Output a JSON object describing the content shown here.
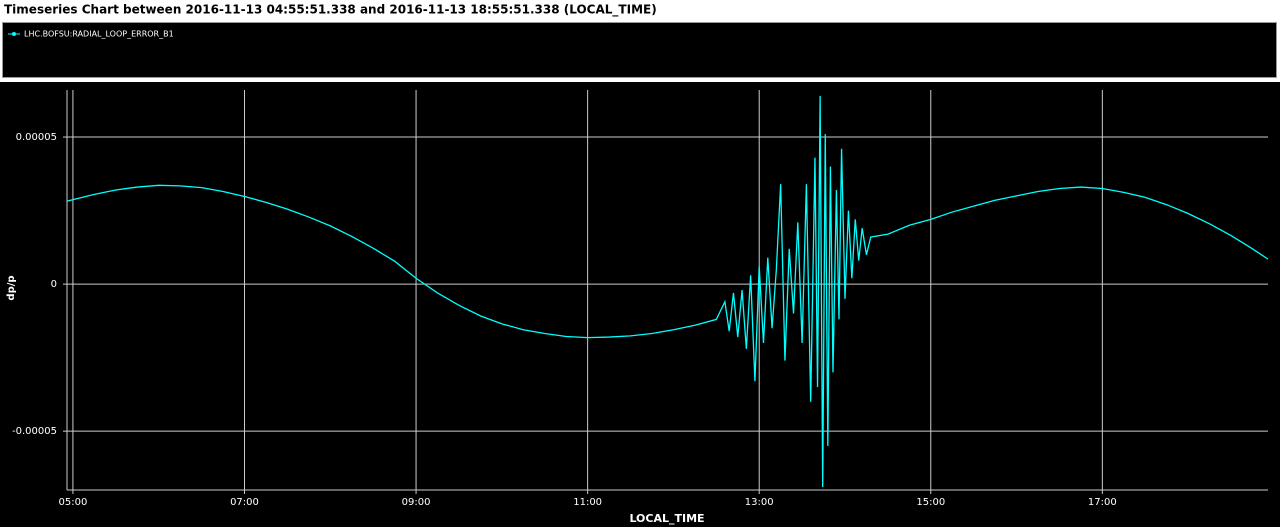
{
  "chart_data": {
    "type": "line",
    "title": "Timeseries Chart between 2016-11-13 04:55:51.338 and 2016-11-13 18:55:51.338 (LOCAL_TIME)",
    "x_label": "LOCAL_TIME",
    "y_label": "dp/p",
    "x": [
      4.931,
      5.25,
      5.5,
      5.75,
      6.0,
      6.25,
      6.5,
      6.75,
      7.0,
      7.25,
      7.5,
      7.75,
      8.0,
      8.25,
      8.5,
      8.75,
      9.0,
      9.25,
      9.5,
      9.75,
      10.0,
      10.25,
      10.5,
      10.75,
      11.0,
      11.25,
      11.5,
      11.75,
      12.0,
      12.25,
      12.5,
      12.6,
      12.65,
      12.7,
      12.75,
      12.8,
      12.85,
      12.9,
      12.95,
      13.0,
      13.05,
      13.1,
      13.15,
      13.2,
      13.25,
      13.3,
      13.35,
      13.4,
      13.45,
      13.5,
      13.55,
      13.6,
      13.65,
      13.68,
      13.71,
      13.74,
      13.77,
      13.8,
      13.83,
      13.86,
      13.9,
      13.93,
      13.96,
      14.0,
      14.04,
      14.08,
      14.12,
      14.16,
      14.2,
      14.25,
      14.3,
      14.5,
      14.75,
      15.0,
      15.25,
      15.5,
      15.75,
      16.0,
      16.25,
      16.5,
      16.75,
      17.0,
      17.25,
      17.5,
      17.75,
      18.0,
      18.25,
      18.5,
      18.75,
      18.931
    ],
    "series": [
      {
        "name": "LHC.BOFSU:RADIAL_LOOP_ERROR_B1",
        "color": "#00ffff",
        "values": [
          2.82e-05,
          3.05e-05,
          3.2e-05,
          3.3e-05,
          3.36e-05,
          3.34e-05,
          3.28e-05,
          3.15e-05,
          2.98e-05,
          2.78e-05,
          2.55e-05,
          2.28e-05,
          1.98e-05,
          1.62e-05,
          1.22e-05,
          7.8e-06,
          2e-06,
          -3e-06,
          -7.2e-06,
          -1.08e-05,
          -1.35e-05,
          -1.55e-05,
          -1.68e-05,
          -1.78e-05,
          -1.82e-05,
          -1.8e-05,
          -1.76e-05,
          -1.68e-05,
          -1.55e-05,
          -1.4e-05,
          -1.2e-05,
          -6e-06,
          -1.6e-05,
          -3e-06,
          -1.8e-05,
          -2e-06,
          -2.2e-05,
          3e-06,
          -3.3e-05,
          6e-06,
          -2e-05,
          9e-06,
          -1.5e-05,
          5e-06,
          3.4e-05,
          -2.6e-05,
          1.2e-05,
          -1e-05,
          2.1e-05,
          -2e-05,
          3.4e-05,
          -4e-05,
          4.3e-05,
          -3.5e-05,
          6.4e-05,
          -6.9e-05,
          5.1e-05,
          -5.5e-05,
          4e-05,
          -3e-05,
          3.2e-05,
          -1.2e-05,
          4.6e-05,
          -5e-06,
          2.5e-05,
          2e-06,
          2.2e-05,
          8e-06,
          1.9e-05,
          1e-05,
          1.6e-05,
          1.7e-05,
          2e-05,
          2.2e-05,
          2.45e-05,
          2.65e-05,
          2.85e-05,
          3e-05,
          3.15e-05,
          3.25e-05,
          3.3e-05,
          3.25e-05,
          3.12e-05,
          2.95e-05,
          2.7e-05,
          2.4e-05,
          2.05e-05,
          1.65e-05,
          1.2e-05,
          8.5e-06
        ]
      }
    ],
    "xlim": [
      4.931,
      18.931
    ],
    "ylim": [
      -7e-05,
      6.6e-05
    ],
    "xticks": [
      {
        "value": 5,
        "label": "05:00"
      },
      {
        "value": 7,
        "label": "07:00"
      },
      {
        "value": 9,
        "label": "09:00"
      },
      {
        "value": 11,
        "label": "11:00"
      },
      {
        "value": 13,
        "label": "13:00"
      },
      {
        "value": 15,
        "label": "15:00"
      },
      {
        "value": 17,
        "label": "17:00"
      }
    ],
    "yticks": [
      -5e-05,
      0,
      5e-05
    ],
    "grid": true
  }
}
